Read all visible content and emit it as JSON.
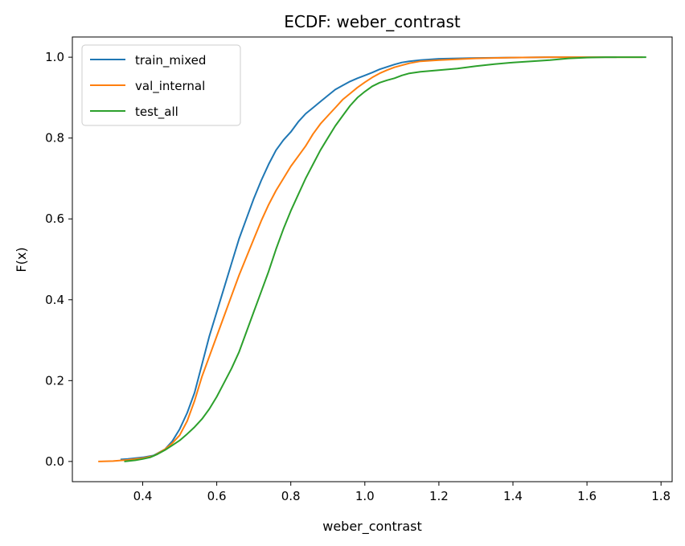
{
  "chart_data": {
    "type": "line",
    "title": "ECDF: weber_contrast",
    "xlabel": "weber_contrast",
    "ylabel": "F(x)",
    "xlim": [
      0.21,
      1.83
    ],
    "ylim": [
      -0.05,
      1.05
    ],
    "xticks": [
      0.4,
      0.6,
      0.8,
      1.0,
      1.2,
      1.4,
      1.6,
      1.8
    ],
    "xtick_labels": [
      "0.4",
      "0.6",
      "0.8",
      "1.0",
      "1.2",
      "1.4",
      "1.6",
      "1.8"
    ],
    "yticks": [
      0.0,
      0.2,
      0.4,
      0.6,
      0.8,
      1.0
    ],
    "ytick_labels": [
      "0.0",
      "0.2",
      "0.4",
      "0.6",
      "0.8",
      "1.0"
    ],
    "grid": false,
    "legend_position": "upper-left",
    "series": [
      {
        "name": "train_mixed",
        "color": "#1f77b4",
        "x": [
          0.34,
          0.36,
          0.4,
          0.43,
          0.46,
          0.48,
          0.5,
          0.52,
          0.54,
          0.56,
          0.58,
          0.6,
          0.62,
          0.64,
          0.66,
          0.68,
          0.7,
          0.72,
          0.74,
          0.76,
          0.78,
          0.8,
          0.82,
          0.84,
          0.86,
          0.88,
          0.9,
          0.92,
          0.94,
          0.96,
          0.98,
          1.0,
          1.02,
          1.04,
          1.06,
          1.08,
          1.1,
          1.12,
          1.15,
          1.2,
          1.3,
          1.4,
          1.5,
          1.6,
          1.68
        ],
        "y": [
          0.005,
          0.006,
          0.01,
          0.015,
          0.03,
          0.05,
          0.08,
          0.12,
          0.17,
          0.24,
          0.31,
          0.37,
          0.43,
          0.49,
          0.55,
          0.6,
          0.65,
          0.695,
          0.735,
          0.77,
          0.795,
          0.815,
          0.84,
          0.86,
          0.875,
          0.89,
          0.905,
          0.92,
          0.93,
          0.94,
          0.948,
          0.955,
          0.962,
          0.97,
          0.976,
          0.982,
          0.987,
          0.99,
          0.993,
          0.996,
          0.998,
          0.999,
          1.0,
          1.0,
          1.0
        ]
      },
      {
        "name": "val_internal",
        "color": "#ff7f0e",
        "x": [
          0.28,
          0.32,
          0.36,
          0.4,
          0.43,
          0.46,
          0.48,
          0.5,
          0.52,
          0.54,
          0.56,
          0.58,
          0.6,
          0.62,
          0.64,
          0.66,
          0.68,
          0.7,
          0.72,
          0.74,
          0.76,
          0.78,
          0.8,
          0.82,
          0.84,
          0.86,
          0.88,
          0.9,
          0.92,
          0.94,
          0.96,
          0.98,
          1.0,
          1.02,
          1.04,
          1.06,
          1.08,
          1.1,
          1.12,
          1.15,
          1.2,
          1.3,
          1.4,
          1.5,
          1.6,
          1.75
        ],
        "y": [
          0.0,
          0.001,
          0.004,
          0.008,
          0.014,
          0.03,
          0.045,
          0.065,
          0.1,
          0.15,
          0.21,
          0.26,
          0.31,
          0.36,
          0.41,
          0.46,
          0.505,
          0.55,
          0.595,
          0.635,
          0.67,
          0.7,
          0.73,
          0.755,
          0.78,
          0.81,
          0.835,
          0.855,
          0.875,
          0.895,
          0.91,
          0.925,
          0.938,
          0.95,
          0.96,
          0.968,
          0.975,
          0.98,
          0.985,
          0.99,
          0.993,
          0.997,
          0.999,
          1.0,
          1.0,
          1.0
        ]
      },
      {
        "name": "test_all",
        "color": "#2ca02c",
        "x": [
          0.35,
          0.38,
          0.4,
          0.42,
          0.44,
          0.46,
          0.48,
          0.5,
          0.52,
          0.54,
          0.56,
          0.58,
          0.6,
          0.62,
          0.64,
          0.66,
          0.68,
          0.7,
          0.72,
          0.74,
          0.76,
          0.78,
          0.8,
          0.82,
          0.84,
          0.86,
          0.88,
          0.9,
          0.92,
          0.94,
          0.96,
          0.98,
          1.0,
          1.02,
          1.04,
          1.06,
          1.08,
          1.1,
          1.12,
          1.15,
          1.2,
          1.25,
          1.3,
          1.35,
          1.4,
          1.45,
          1.5,
          1.55,
          1.6,
          1.65,
          1.7,
          1.76
        ],
        "y": [
          0.0,
          0.003,
          0.006,
          0.01,
          0.018,
          0.028,
          0.04,
          0.052,
          0.068,
          0.085,
          0.105,
          0.13,
          0.16,
          0.195,
          0.23,
          0.27,
          0.32,
          0.37,
          0.42,
          0.47,
          0.525,
          0.575,
          0.62,
          0.66,
          0.7,
          0.735,
          0.77,
          0.8,
          0.83,
          0.855,
          0.88,
          0.9,
          0.915,
          0.928,
          0.937,
          0.943,
          0.948,
          0.955,
          0.96,
          0.964,
          0.968,
          0.972,
          0.978,
          0.983,
          0.987,
          0.99,
          0.993,
          0.997,
          0.999,
          1.0,
          1.0,
          1.0
        ]
      }
    ]
  }
}
